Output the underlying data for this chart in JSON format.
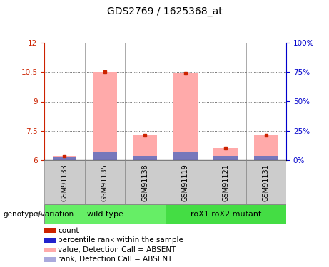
{
  "title": "GDS2769 / 1625368_at",
  "samples": [
    "GSM91133",
    "GSM91135",
    "GSM91138",
    "GSM91119",
    "GSM91121",
    "GSM91131"
  ],
  "groups": [
    {
      "label": "wild type",
      "count": 3
    },
    {
      "label": "roX1 roX2 mutant",
      "count": 3
    }
  ],
  "baseline": 6.0,
  "pink_bar_tops": [
    6.22,
    10.52,
    7.28,
    10.43,
    6.63,
    7.27
  ],
  "blue_segment_tops": [
    6.13,
    6.42,
    6.22,
    6.42,
    6.22,
    6.22
  ],
  "ylim_left": [
    6,
    12
  ],
  "ylim_right": [
    0,
    100
  ],
  "yticks_left": [
    6,
    7.5,
    9,
    10.5,
    12
  ],
  "yticks_right": [
    0,
    25,
    50,
    75,
    100
  ],
  "ytick_labels_left": [
    "6",
    "7.5",
    "9",
    "10.5",
    "12"
  ],
  "ytick_labels_right": [
    "0%",
    "25%",
    "50%",
    "75%",
    "100%"
  ],
  "left_tick_color": "#cc2200",
  "right_tick_color": "#0000cc",
  "bar_width": 0.6,
  "pink_color": "#ffaaaa",
  "blue_color": "#7777bb",
  "red_marker_color": "#cc2200",
  "grid_color": "#444444",
  "bg_plot_color": "#ffffff",
  "bg_sample_color": "#cccccc",
  "group_bg_color1": "#66ee66",
  "group_bg_color2": "#44dd44",
  "legend_items": [
    {
      "label": "count",
      "color": "#cc2200"
    },
    {
      "label": "percentile rank within the sample",
      "color": "#2222cc"
    },
    {
      "label": "value, Detection Call = ABSENT",
      "color": "#ffaaaa"
    },
    {
      "label": "rank, Detection Call = ABSENT",
      "color": "#aaaadd"
    }
  ],
  "genotype_label": "genotype/variation",
  "right_label_color": "#0000cc"
}
